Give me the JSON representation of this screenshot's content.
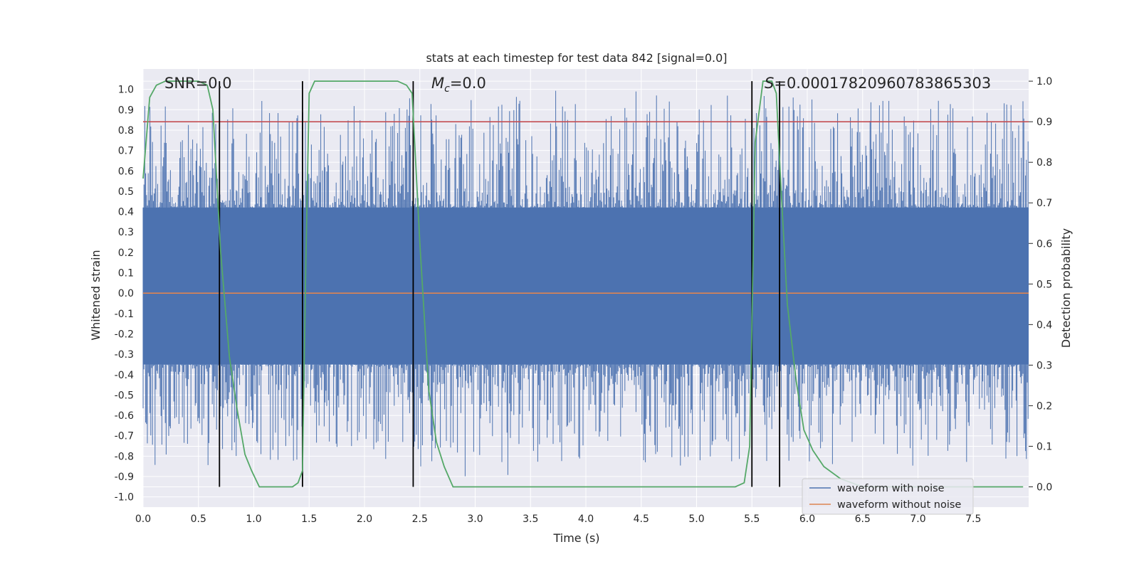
{
  "chart_data": {
    "type": "line",
    "title": "stats at each timestep for test data 842 [signal=0.0]",
    "xlabel": "Time (s)",
    "ylabel_left": "Whitened strain",
    "ylabel_right": "Detection probability",
    "xlim": [
      0.0,
      8.0
    ],
    "ylim_left": [
      -1.05,
      1.1
    ],
    "ylim_right": [
      -0.05,
      1.03
    ],
    "x_ticks": [
      "0.0",
      "0.5",
      "1.0",
      "1.5",
      "2.0",
      "2.5",
      "3.0",
      "3.5",
      "4.0",
      "4.5",
      "5.0",
      "5.5",
      "6.0",
      "6.5",
      "7.0",
      "7.5"
    ],
    "y_left_ticks": [
      "-1.0",
      "-0.9",
      "-0.8",
      "-0.7",
      "-0.6",
      "-0.5",
      "-0.4",
      "-0.3",
      "-0.2",
      "-0.1",
      "0.0",
      "0.1",
      "0.2",
      "0.3",
      "0.4",
      "0.5",
      "0.6",
      "0.7",
      "0.8",
      "0.9",
      "1.0"
    ],
    "y_right_ticks": [
      "0.0",
      "0.1",
      "0.2",
      "0.3",
      "0.4",
      "0.5",
      "0.6",
      "0.7",
      "0.8",
      "0.9",
      "1.0"
    ],
    "annotations": {
      "snr": "SNR=0.0",
      "mc_symbol": "M",
      "mc_sub": "c",
      "mc_value": "=0.0",
      "s_symbol": "S",
      "s_value": "=0.00017820960783865303"
    },
    "threshold_right": 0.9,
    "vertical_lines_x": [
      0.69,
      1.44,
      2.44,
      5.5,
      5.75
    ],
    "probability_curve": {
      "name": "Detection probability",
      "x": [
        0.0,
        0.06,
        0.12,
        0.2,
        0.3,
        0.4,
        0.5,
        0.58,
        0.63,
        0.7,
        0.78,
        0.85,
        0.92,
        0.98,
        1.05,
        1.2,
        1.35,
        1.4,
        1.44,
        1.47,
        1.5,
        1.55,
        1.7,
        2.0,
        2.3,
        2.38,
        2.43,
        2.5,
        2.58,
        2.65,
        2.72,
        2.8,
        3.2,
        4.0,
        4.5,
        5.0,
        5.35,
        5.43,
        5.48,
        5.53,
        5.6,
        5.68,
        5.72,
        5.76,
        5.82,
        5.9,
        5.97,
        6.05,
        6.15,
        6.3,
        6.5,
        7.0,
        7.5,
        7.95
      ],
      "values": [
        0.76,
        0.96,
        0.99,
        1.0,
        1.0,
        1.0,
        1.0,
        0.99,
        0.93,
        0.58,
        0.32,
        0.19,
        0.08,
        0.04,
        0.0,
        0.0,
        0.0,
        0.01,
        0.04,
        0.55,
        0.97,
        1.0,
        1.0,
        1.0,
        1.0,
        0.99,
        0.97,
        0.6,
        0.24,
        0.11,
        0.05,
        0.0,
        0.0,
        0.0,
        0.0,
        0.0,
        0.0,
        0.01,
        0.1,
        0.85,
        1.0,
        1.0,
        0.97,
        0.75,
        0.45,
        0.26,
        0.14,
        0.09,
        0.05,
        0.02,
        0.0,
        0.0,
        0.0,
        0.0
      ]
    },
    "series": [
      {
        "name": "waveform with noise",
        "color": "#4c72b0",
        "approx_envelope": [
          -0.92,
          1.0
        ],
        "approx_band": [
          -0.35,
          0.42
        ]
      },
      {
        "name": "waveform without noise",
        "color": "#dd8452",
        "value": 0.0
      }
    ],
    "colors": {
      "noise": "#4c72b0",
      "clean": "#dd8452",
      "probability": "#55a868",
      "threshold": "#c44e52",
      "vline": "#000000",
      "plot_bg": "#eaeaf2",
      "grid": "#ffffff"
    }
  }
}
